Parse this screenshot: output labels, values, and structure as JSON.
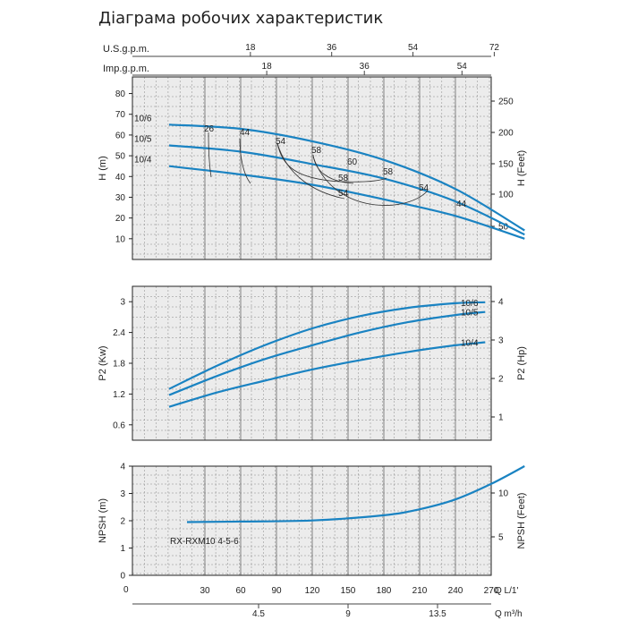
{
  "title": "Діаграма робочих характеристик",
  "colors": {
    "curve": "#1a83c2",
    "grid": "#888888",
    "panel_bg": "#ececec",
    "annot": "#333333"
  },
  "flow_scales": {
    "us_gpm": {
      "label": "U.S.g.p.m.",
      "ticks": [
        18,
        36,
        54,
        72
      ]
    },
    "imp_gpm": {
      "label": "Imp.g.p.m.",
      "ticks": [
        18,
        36,
        54
      ]
    },
    "q_lmin": {
      "label": "Q  L/1'",
      "ticks": [
        0,
        30,
        60,
        90,
        120,
        150,
        180,
        210,
        240,
        270
      ]
    },
    "q_m3h": {
      "label": "Q  m³/h",
      "ticks": [
        "4.5",
        "9",
        "13.5"
      ]
    }
  },
  "model_label": "RX-RXM10 4-5-6",
  "chart_data": [
    {
      "type": "line",
      "panel": "head",
      "ylabel": "H (m)",
      "y2label": "H (Feet)",
      "ylim": [
        0,
        88
      ],
      "xlim": [
        0,
        298
      ],
      "yticks": [
        10,
        20,
        30,
        40,
        50,
        60,
        70,
        80
      ],
      "y2ticks": [
        "50",
        "100",
        "150",
        "200",
        "250"
      ],
      "series": [
        {
          "name": "10/6",
          "x": [
            0,
            60,
            120,
            180,
            240,
            298
          ],
          "values": [
            65,
            63,
            57,
            48,
            34,
            14
          ]
        },
        {
          "name": "10/5",
          "x": [
            0,
            60,
            120,
            180,
            240,
            298
          ],
          "values": [
            55,
            52,
            46,
            39,
            28,
            12
          ]
        },
        {
          "name": "10/4",
          "x": [
            0,
            60,
            120,
            180,
            240,
            298
          ],
          "values": [
            45,
            41,
            36,
            29,
            21,
            10
          ]
        }
      ],
      "efficiency_labels": [
        "26",
        "44",
        "54",
        "58",
        "60",
        "58",
        "54",
        "44",
        "54",
        "58"
      ]
    },
    {
      "type": "line",
      "panel": "power",
      "ylabel": "P2 (Kw)",
      "y2label": "P2 (Hp)",
      "ylim": [
        0.3,
        3.3
      ],
      "xlim": [
        0,
        298
      ],
      "yticks": [
        "0.6",
        "1.2",
        "1.8",
        "2.4",
        "3"
      ],
      "y2ticks": [
        "1",
        "2",
        "3",
        "4"
      ],
      "series": [
        {
          "name": "10/6",
          "x": [
            0,
            40,
            80,
            120,
            160,
            200,
            240,
            265
          ],
          "values": [
            1.3,
            1.75,
            2.15,
            2.48,
            2.72,
            2.88,
            2.97,
            2.99
          ]
        },
        {
          "name": "10/5",
          "x": [
            0,
            40,
            80,
            120,
            160,
            200,
            240,
            265
          ],
          "values": [
            1.18,
            1.55,
            1.88,
            2.15,
            2.4,
            2.6,
            2.74,
            2.8
          ]
        },
        {
          "name": "10/4",
          "x": [
            0,
            40,
            80,
            120,
            160,
            200,
            240,
            265
          ],
          "values": [
            0.95,
            1.23,
            1.46,
            1.68,
            1.86,
            2.02,
            2.15,
            2.21
          ]
        }
      ]
    },
    {
      "type": "line",
      "panel": "npsh",
      "ylabel": "NPSH (m)",
      "y2label": "NPSH (Feet)",
      "ylim": [
        0,
        4
      ],
      "xlim": [
        0,
        298
      ],
      "yticks": [
        "0",
        "1",
        "2",
        "3",
        "4"
      ],
      "y2ticks": [
        "5",
        "10"
      ],
      "series": [
        {
          "name": "",
          "x": [
            15,
            60,
            120,
            180,
            210,
            240,
            270,
            298
          ],
          "values": [
            1.95,
            1.97,
            2.01,
            2.2,
            2.42,
            2.78,
            3.35,
            4.0
          ]
        }
      ]
    }
  ]
}
